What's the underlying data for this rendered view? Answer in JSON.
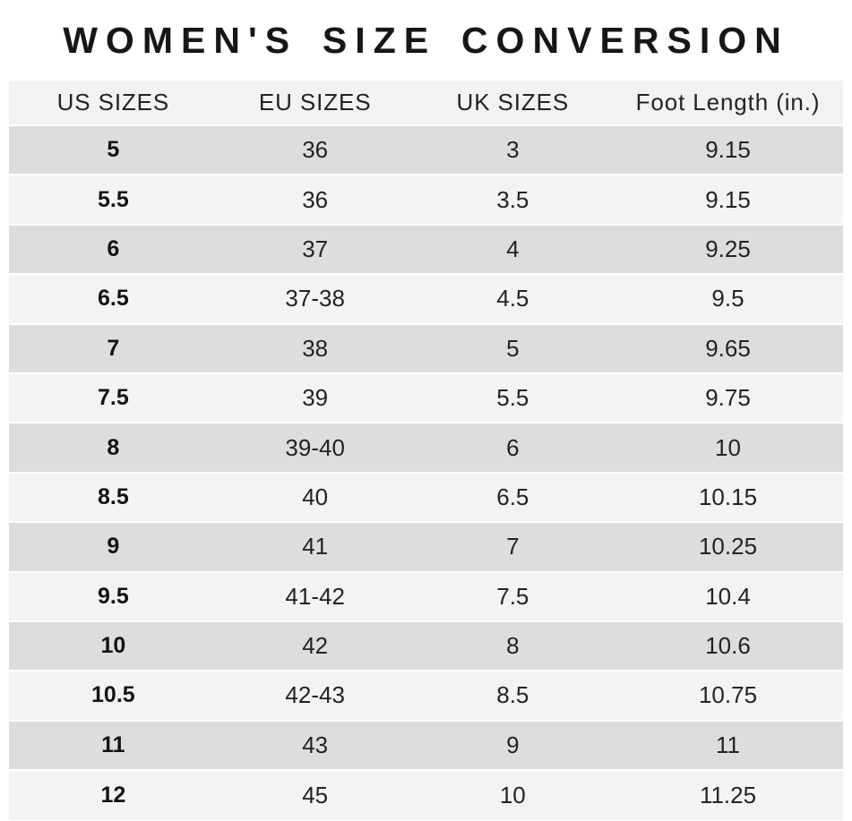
{
  "page_title": "WOMEN'S SIZE CONVERSION",
  "chart_data": {
    "type": "table",
    "title": "WOMEN'S SIZE CONVERSION",
    "columns": [
      "US SIZES",
      "EU SIZES",
      "UK SIZES",
      "Foot Length (in.)"
    ],
    "rows": [
      [
        "5",
        "36",
        "3",
        "9.15"
      ],
      [
        "5.5",
        "36",
        "3.5",
        "9.15"
      ],
      [
        "6",
        "37",
        "4",
        "9.25"
      ],
      [
        "6.5",
        "37-38",
        "4.5",
        "9.5"
      ],
      [
        "7",
        "38",
        "5",
        "9.65"
      ],
      [
        "7.5",
        "39",
        "5.5",
        "9.75"
      ],
      [
        "8",
        "39-40",
        "6",
        "10"
      ],
      [
        "8.5",
        "40",
        "6.5",
        "10.15"
      ],
      [
        "9",
        "41",
        "7",
        "10.25"
      ],
      [
        "9.5",
        "41-42",
        "7.5",
        "10.4"
      ],
      [
        "10",
        "42",
        "8",
        "10.6"
      ],
      [
        "10.5",
        "42-43",
        "8.5",
        "10.75"
      ],
      [
        "11",
        "43",
        "9",
        "11"
      ],
      [
        "12",
        "45",
        "10",
        "11.25"
      ]
    ],
    "layout": {
      "legend": "none",
      "grid": "alternating-row-stripes",
      "columns_alignment": "center"
    }
  },
  "colors": {
    "page_bg": "#ffffff",
    "header_bg": "#f2f2f1",
    "row_dark": "#dcdddd",
    "row_light": "#f2f3f2",
    "text": "#1d1d1f"
  }
}
